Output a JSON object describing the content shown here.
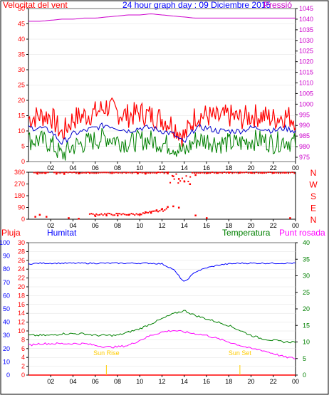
{
  "colors": {
    "frame": "#000000",
    "wind_speed": "#ff0000",
    "wind_avg": "#0000cc",
    "wind_gust_low": "#008000",
    "pressure": "#cc00cc",
    "rain": "#ff0000",
    "humidity": "#0000ff",
    "temperature": "#008000",
    "dewpoint": "#ff00ff",
    "sun": "#ffcc00",
    "top_title": "#0000ff"
  },
  "header": {
    "wind_label": "Velocitat del vent",
    "title": "24 hour graph day : 09 Diciembre 2015",
    "pressure_label": "Pressió"
  },
  "bottom_header": {
    "rain_label": "Pluja",
    "humidity_label": "Humitat",
    "temperature_label": "Temperatura",
    "dewpoint_label": "Punt rosada"
  },
  "sun_labels": {
    "rise": "Sun Rise",
    "set": "Sun Set"
  },
  "chart_data": [
    {
      "type": "line",
      "name": "wind-pressure",
      "x_ticks": [
        "02",
        "04",
        "06",
        "08",
        "10",
        "12",
        "14",
        "16",
        "18",
        "20",
        "22",
        "00"
      ],
      "left_axis": {
        "ticks": [
          0,
          5,
          10,
          15,
          20,
          25,
          30,
          35,
          40,
          45,
          50
        ],
        "ylim": [
          0,
          50
        ]
      },
      "right_axis": {
        "ticks": [
          975,
          980,
          985,
          990,
          995,
          1000,
          1005,
          1010,
          1015,
          1020,
          1025,
          1030,
          1035,
          1040,
          1045
        ],
        "ylim": [
          973,
          1045
        ]
      },
      "hours": [
        0,
        1,
        2,
        3,
        4,
        5,
        6,
        7,
        8,
        9,
        10,
        11,
        12,
        13,
        14,
        15,
        16,
        17,
        18,
        19,
        20,
        21,
        22,
        23,
        24
      ],
      "series": [
        {
          "key": "gust",
          "values": [
            14,
            15,
            15,
            9,
            14,
            15,
            16,
            18,
            16,
            15,
            16,
            15,
            14,
            12,
            8,
            15,
            15,
            14,
            15,
            14,
            15,
            15,
            14,
            15,
            14
          ]
        },
        {
          "key": "average",
          "values": [
            11,
            11,
            10,
            6,
            9,
            10,
            11,
            12,
            11,
            10,
            11,
            11,
            10,
            9,
            6,
            11,
            11,
            10,
            10,
            10,
            11,
            11,
            10,
            11,
            10
          ]
        },
        {
          "key": "low",
          "values": [
            7,
            7,
            6,
            2,
            5,
            6,
            7,
            8,
            7,
            6,
            7,
            7,
            6,
            5,
            3,
            7,
            7,
            6,
            6,
            6,
            7,
            7,
            6,
            7,
            6
          ]
        },
        {
          "key": "pressure",
          "values": [
            1039,
            1039,
            1039.5,
            1040,
            1040,
            1040.5,
            1040.5,
            1041,
            1041.5,
            1042,
            1042,
            1042.5,
            1042,
            1041.5,
            1041,
            1040.5,
            1040.5,
            1040.5,
            1040.5,
            1040.5,
            1040.5,
            1040.5,
            1040.5,
            1040.5,
            1040.5
          ]
        }
      ]
    },
    {
      "type": "scatter",
      "name": "wind-direction",
      "x_ticks": [
        "02",
        "04",
        "06",
        "08",
        "10",
        "12",
        "14",
        "16",
        "18",
        "20",
        "22",
        "00"
      ],
      "left_axis": {
        "ticks": [
          0,
          90,
          180,
          270,
          360
        ],
        "ylim": [
          0,
          360
        ]
      },
      "right_labels": [
        "N",
        "W",
        "S",
        "E",
        "N"
      ],
      "points_high": [
        [
          0.8,
          350
        ],
        [
          1.5,
          355
        ],
        [
          2.5,
          350
        ],
        [
          3.2,
          348
        ],
        [
          4.5,
          352
        ],
        [
          5.5,
          356
        ],
        [
          7.5,
          355
        ],
        [
          9.8,
          352
        ],
        [
          10.5,
          350
        ],
        [
          11.5,
          356
        ],
        [
          12.5,
          352
        ],
        [
          13,
          330
        ],
        [
          13.5,
          310
        ],
        [
          14,
          290
        ],
        [
          14.5,
          270
        ],
        [
          15,
          340
        ],
        [
          16,
          355
        ],
        [
          17,
          356
        ],
        [
          18,
          357
        ],
        [
          19,
          358
        ],
        [
          20,
          358
        ],
        [
          21,
          358
        ],
        [
          22,
          358
        ],
        [
          23,
          358
        ]
      ],
      "points_low": [
        [
          0.6,
          20
        ],
        [
          1,
          35
        ],
        [
          1.6,
          20
        ],
        [
          3.6,
          10
        ],
        [
          4.5,
          5
        ],
        [
          6,
          25
        ],
        [
          7,
          30
        ],
        [
          8,
          30
        ],
        [
          9,
          35
        ],
        [
          10,
          40
        ],
        [
          10.5,
          55
        ],
        [
          11,
          50
        ],
        [
          11.5,
          70
        ],
        [
          12,
          80
        ],
        [
          12.5,
          95
        ],
        [
          13,
          100
        ],
        [
          13.5,
          90
        ],
        [
          15,
          30
        ],
        [
          16,
          10
        ],
        [
          23.5,
          10
        ]
      ]
    },
    {
      "type": "line",
      "name": "temperature-humidity-dewpoint",
      "x_ticks": [
        "02",
        "04",
        "06",
        "08",
        "10",
        "12",
        "14",
        "16",
        "18",
        "20",
        "22",
        "00"
      ],
      "left_axis_rain": {
        "ticks": [
          0,
          2,
          4,
          6,
          8,
          10,
          12,
          14,
          16,
          18,
          20,
          22,
          24,
          26,
          28,
          30
        ],
        "ylim": [
          0,
          30
        ]
      },
      "left_axis_humidity": {
        "ticks": [
          0,
          10,
          20,
          30,
          40,
          50,
          60,
          70,
          80,
          90,
          100
        ],
        "ylim": [
          0,
          100
        ]
      },
      "right_axis": {
        "ticks": [
          0,
          5,
          10,
          15,
          20,
          25,
          30,
          35,
          40
        ],
        "ylim": [
          0,
          40
        ]
      },
      "hours": [
        0,
        1,
        2,
        3,
        4,
        5,
        6,
        7,
        8,
        9,
        10,
        11,
        12,
        13,
        14,
        15,
        16,
        17,
        18,
        19,
        20,
        21,
        22,
        23,
        24
      ],
      "series": [
        {
          "key": "humidity",
          "values": [
            84,
            84.5,
            84.5,
            84.5,
            84.5,
            84.5,
            84.5,
            84.5,
            84.5,
            84.5,
            84.5,
            84.5,
            84,
            80,
            70,
            78,
            81,
            83,
            84,
            84.5,
            84.5,
            84.5,
            84.5,
            84.5,
            84.5
          ]
        },
        {
          "key": "temperature",
          "values": [
            12,
            12,
            12,
            12.5,
            12.5,
            12.5,
            12,
            12,
            12,
            13,
            14,
            15.5,
            17,
            18.5,
            19.5,
            18,
            17,
            16,
            15,
            13.5,
            12,
            11,
            10.5,
            10,
            10
          ]
        },
        {
          "key": "dewpoint",
          "values": [
            9,
            9.5,
            9.5,
            9.5,
            9.5,
            9.5,
            9,
            8.5,
            8.5,
            9,
            10.5,
            12,
            13,
            13.5,
            13,
            12.5,
            12,
            11,
            10,
            9,
            8,
            7.5,
            6.5,
            5.5,
            5
          ]
        },
        {
          "key": "rain",
          "values": [
            0,
            0,
            0,
            0,
            0,
            0,
            0,
            0,
            0,
            0,
            0,
            0,
            0,
            0,
            0,
            0,
            0,
            0,
            0,
            0,
            0,
            0,
            0,
            0,
            0
          ]
        }
      ],
      "sun_rise_hour": 7,
      "sun_set_hour": 19
    }
  ]
}
